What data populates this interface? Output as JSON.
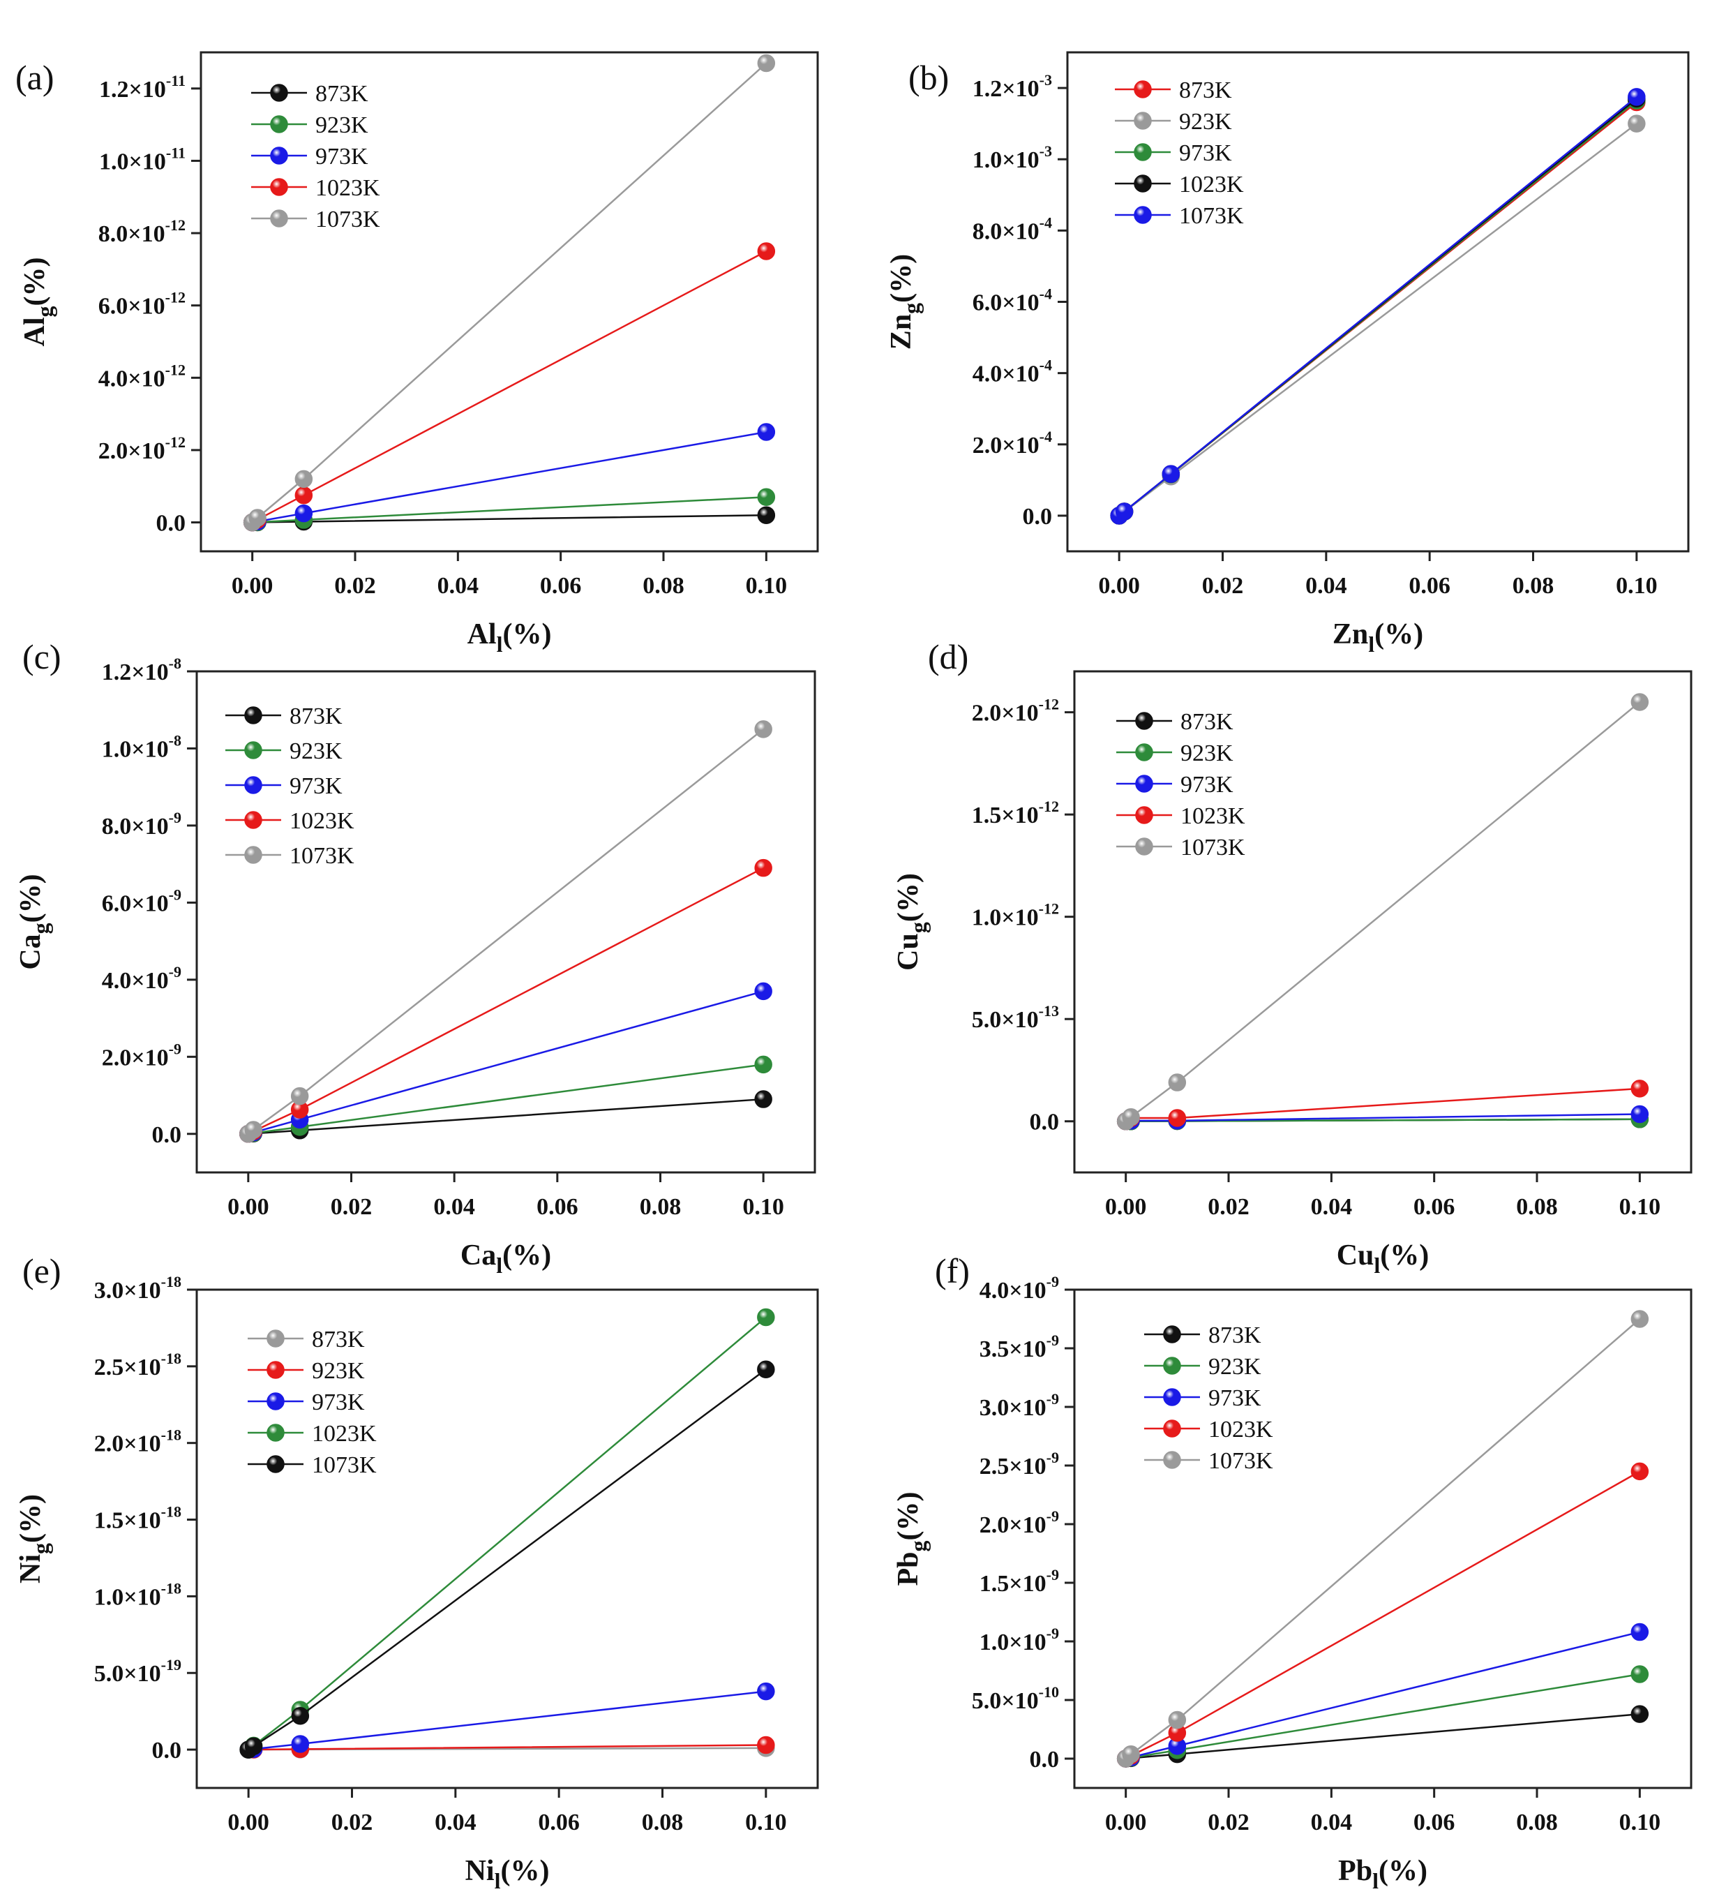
{
  "figure": {
    "panel_count": 6
  },
  "chart_data": [
    {
      "panel": "(a)",
      "type": "line",
      "xlabel_main": "Al",
      "xlabel_sub": "l",
      "xlabel_tail": "(%)",
      "ylabel_main": "Al",
      "ylabel_sub": "g",
      "ylabel_tail": "(%)",
      "xlim": [
        -0.01,
        0.11
      ],
      "ylim": [
        -8e-13,
        1.3e-11
      ],
      "grid": false,
      "xticks": [
        0,
        0.02,
        0.04,
        0.06,
        0.08,
        0.1
      ],
      "xtick_labels": [
        "0.00",
        "0.02",
        "0.04",
        "0.06",
        "0.08",
        "0.10"
      ],
      "yticks": [
        0,
        2e-12,
        4e-12,
        6e-12,
        8e-12,
        1e-11,
        1.2e-11
      ],
      "ytick_labels": [
        {
          "m": "0.0",
          "e": ""
        },
        {
          "m": "2.0×10",
          "e": "-12"
        },
        {
          "m": "4.0×10",
          "e": "-12"
        },
        {
          "m": "6.0×10",
          "e": "-12"
        },
        {
          "m": "8.0×10",
          "e": "-12"
        },
        {
          "m": "1.0×10",
          "e": "-11"
        },
        {
          "m": "1.2×10",
          "e": "-11"
        }
      ],
      "legend_position": "top-left",
      "x": [
        0,
        0.001,
        0.01,
        0.1
      ],
      "series": [
        {
          "name": "873K",
          "color": "#111111",
          "values": [
            0,
            2e-15,
            2e-14,
            2e-13
          ]
        },
        {
          "name": "923K",
          "color": "#2e8b3a",
          "values": [
            0,
            7e-15,
            7e-14,
            7e-13
          ]
        },
        {
          "name": "973K",
          "color": "#1a1ae6",
          "values": [
            0,
            2.5e-14,
            2.5e-13,
            2.5e-12
          ]
        },
        {
          "name": "1023K",
          "color": "#e61a1a",
          "values": [
            0,
            7.5e-14,
            7.5e-13,
            7.5e-12
          ]
        },
        {
          "name": "1073K",
          "color": "#9a9a9a",
          "values": [
            0,
            1.27e-13,
            1.2e-12,
            1.27e-11
          ]
        }
      ]
    },
    {
      "panel": "(b)",
      "type": "line",
      "xlabel_main": "Zn",
      "xlabel_sub": "l",
      "xlabel_tail": "(%)",
      "ylabel_main": "Zn",
      "ylabel_sub": "g",
      "ylabel_tail": "(%)",
      "xlim": [
        -0.01,
        0.11
      ],
      "ylim": [
        -0.0001,
        0.0013
      ],
      "grid": false,
      "xticks": [
        0,
        0.02,
        0.04,
        0.06,
        0.08,
        0.1
      ],
      "xtick_labels": [
        "0.00",
        "0.02",
        "0.04",
        "0.06",
        "0.08",
        "0.10"
      ],
      "yticks": [
        0,
        0.0002,
        0.0004,
        0.0006,
        0.0008,
        0.001,
        0.0012
      ],
      "ytick_labels": [
        {
          "m": "0.0",
          "e": ""
        },
        {
          "m": "2.0×10",
          "e": "-4"
        },
        {
          "m": "4.0×10",
          "e": "-4"
        },
        {
          "m": "6.0×10",
          "e": "-4"
        },
        {
          "m": "8.0×10",
          "e": "-4"
        },
        {
          "m": "1.0×10",
          "e": "-3"
        },
        {
          "m": "1.2×10",
          "e": "-3"
        }
      ],
      "legend_position": "top-left",
      "x": [
        0,
        0.001,
        0.01,
        0.1
      ],
      "series": [
        {
          "name": "873K",
          "color": "#e61a1a",
          "values": [
            0,
            1.16e-05,
            0.000116,
            0.00116
          ]
        },
        {
          "name": "923K",
          "color": "#9a9a9a",
          "values": [
            0,
            1.1e-05,
            0.00011,
            0.0011
          ]
        },
        {
          "name": "973K",
          "color": "#2e8b3a",
          "values": [
            0,
            1.16e-05,
            0.000116,
            0.001165
          ]
        },
        {
          "name": "1023K",
          "color": "#111111",
          "values": [
            0,
            1.17e-05,
            0.000117,
            0.00117
          ]
        },
        {
          "name": "1073K",
          "color": "#1a1ae6",
          "values": [
            0,
            1.17e-05,
            0.000117,
            0.001175
          ]
        }
      ]
    },
    {
      "panel": "(c)",
      "type": "line",
      "xlabel_main": "Ca",
      "xlabel_sub": "l",
      "xlabel_tail": "(%)",
      "ylabel_main": "Ca",
      "ylabel_sub": "g",
      "ylabel_tail": "(%)",
      "xlim": [
        -0.01,
        0.11
      ],
      "ylim": [
        -1e-09,
        1.2e-08
      ],
      "grid": false,
      "xticks": [
        0,
        0.02,
        0.04,
        0.06,
        0.08,
        0.1
      ],
      "xtick_labels": [
        "0.00",
        "0.02",
        "0.04",
        "0.06",
        "0.08",
        "0.10"
      ],
      "yticks": [
        0,
        2e-09,
        4e-09,
        6e-09,
        8e-09,
        1e-08,
        1.2e-08
      ],
      "ytick_labels": [
        {
          "m": "0.0",
          "e": ""
        },
        {
          "m": "2.0×10",
          "e": "-9"
        },
        {
          "m": "4.0×10",
          "e": "-9"
        },
        {
          "m": "6.0×10",
          "e": "-9"
        },
        {
          "m": "8.0×10",
          "e": "-9"
        },
        {
          "m": "1.0×10",
          "e": "-8"
        },
        {
          "m": "1.2×10",
          "e": "-8"
        }
      ],
      "legend_position": "top-left",
      "x": [
        0,
        0.001,
        0.01,
        0.1
      ],
      "series": [
        {
          "name": "873K",
          "color": "#111111",
          "values": [
            0,
            9e-12,
            9e-11,
            9e-10
          ]
        },
        {
          "name": "923K",
          "color": "#2e8b3a",
          "values": [
            0,
            1.8e-11,
            1.8e-10,
            1.8e-09
          ]
        },
        {
          "name": "973K",
          "color": "#1a1ae6",
          "values": [
            0,
            3.7e-11,
            3.7e-10,
            3.7e-09
          ]
        },
        {
          "name": "1023K",
          "color": "#e61a1a",
          "values": [
            0,
            6.9e-11,
            6.3e-10,
            6.9e-09
          ]
        },
        {
          "name": "1073K",
          "color": "#9a9a9a",
          "values": [
            0,
            1.05e-10,
            9.8e-10,
            1.05e-08
          ]
        }
      ]
    },
    {
      "panel": "(d)",
      "type": "line",
      "xlabel_main": "Cu",
      "xlabel_sub": "l",
      "xlabel_tail": "(%)",
      "ylabel_main": "Cu",
      "ylabel_sub": "g",
      "ylabel_tail": "(%)",
      "xlim": [
        -0.01,
        0.11
      ],
      "ylim": [
        -2.5e-13,
        2.2e-12
      ],
      "grid": false,
      "xticks": [
        0,
        0.02,
        0.04,
        0.06,
        0.08,
        0.1
      ],
      "xtick_labels": [
        "0.00",
        "0.02",
        "0.04",
        "0.06",
        "0.08",
        "0.10"
      ],
      "yticks": [
        0,
        5e-13,
        1e-12,
        1.5e-12,
        2e-12
      ],
      "ytick_labels": [
        {
          "m": "0.0",
          "e": ""
        },
        {
          "m": "5.0×10",
          "e": "-13"
        },
        {
          "m": "1.0×10",
          "e": "-12"
        },
        {
          "m": "1.5×10",
          "e": "-12"
        },
        {
          "m": "2.0×10",
          "e": "-12"
        }
      ],
      "legend_position": "top-left",
      "x": [
        0,
        0.001,
        0.01,
        0.1
      ],
      "series": [
        {
          "name": "873K",
          "color": "#111111",
          "values": [
            0,
            1e-16,
            1e-15,
            1e-14
          ]
        },
        {
          "name": "923K",
          "color": "#2e8b3a",
          "values": [
            0,
            1e-16,
            1e-15,
            1e-14
          ]
        },
        {
          "name": "973K",
          "color": "#1a1ae6",
          "values": [
            0,
            3e-15,
            3e-15,
            3.5e-14
          ]
        },
        {
          "name": "1023K",
          "color": "#e61a1a",
          "values": [
            0,
            1.6e-14,
            1.6e-14,
            1.6e-13
          ]
        },
        {
          "name": "1073K",
          "color": "#9a9a9a",
          "values": [
            0,
            2.05e-14,
            1.9e-13,
            2.05e-12
          ]
        }
      ]
    },
    {
      "panel": "(e)",
      "type": "line",
      "xlabel_main": "Ni",
      "xlabel_sub": "l",
      "xlabel_tail": "(%)",
      "ylabel_main": "Ni",
      "ylabel_sub": "g",
      "ylabel_tail": "(%)",
      "xlim": [
        -0.01,
        0.11
      ],
      "ylim": [
        -2.5e-19,
        3e-18
      ],
      "grid": false,
      "xticks": [
        0,
        0.02,
        0.04,
        0.06,
        0.08,
        0.1
      ],
      "xtick_labels": [
        "0.00",
        "0.02",
        "0.04",
        "0.06",
        "0.08",
        "0.10"
      ],
      "yticks": [
        0,
        5e-19,
        1e-18,
        1.5e-18,
        2e-18,
        2.5e-18,
        3e-18
      ],
      "ytick_labels": [
        {
          "m": "0.0",
          "e": ""
        },
        {
          "m": "5.0×10",
          "e": "-19"
        },
        {
          "m": "1.0×10",
          "e": "-18"
        },
        {
          "m": "1.5×10",
          "e": "-18"
        },
        {
          "m": "2.0×10",
          "e": "-18"
        },
        {
          "m": "2.5×10",
          "e": "-18"
        },
        {
          "m": "3.0×10",
          "e": "-18"
        }
      ],
      "legend_position": "top-left",
      "x": [
        0,
        0.001,
        0.01,
        0.1
      ],
      "series": [
        {
          "name": "873K",
          "color": "#9a9a9a",
          "values": [
            0,
            1e-22,
            1e-21,
            1e-20
          ]
        },
        {
          "name": "923K",
          "color": "#e61a1a",
          "values": [
            0,
            3e-22,
            3e-21,
            3e-20
          ]
        },
        {
          "name": "973K",
          "color": "#1a1ae6",
          "values": [
            0,
            3.7e-21,
            3.7e-20,
            3.8e-19
          ]
        },
        {
          "name": "1023K",
          "color": "#2e8b3a",
          "values": [
            0,
            2.6e-20,
            2.6e-19,
            2.82e-18
          ]
        },
        {
          "name": "1073K",
          "color": "#111111",
          "values": [
            0,
            2.2e-20,
            2.2e-19,
            2.48e-18
          ]
        }
      ]
    },
    {
      "panel": "(f)",
      "type": "line",
      "xlabel_main": "Pb",
      "xlabel_sub": "l",
      "xlabel_tail": "(%)",
      "ylabel_main": "Pb",
      "ylabel_sub": "g",
      "ylabel_tail": "(%)",
      "xlim": [
        -0.01,
        0.11
      ],
      "ylim": [
        -2.5e-10,
        4e-09
      ],
      "grid": false,
      "xticks": [
        0,
        0.02,
        0.04,
        0.06,
        0.08,
        0.1
      ],
      "xtick_labels": [
        "0.00",
        "0.02",
        "0.04",
        "0.06",
        "0.08",
        "0.10"
      ],
      "yticks": [
        0,
        5e-10,
        1e-09,
        1.5e-09,
        2e-09,
        2.5e-09,
        3e-09,
        3.5e-09,
        4e-09
      ],
      "ytick_labels": [
        {
          "m": "0.0",
          "e": ""
        },
        {
          "m": "5.0×10",
          "e": "-10"
        },
        {
          "m": "1.0×10",
          "e": "-9"
        },
        {
          "m": "1.5×10",
          "e": "-9"
        },
        {
          "m": "2.0×10",
          "e": "-9"
        },
        {
          "m": "2.5×10",
          "e": "-9"
        },
        {
          "m": "3.0×10",
          "e": "-9"
        },
        {
          "m": "3.5×10",
          "e": "-9"
        },
        {
          "m": "4.0×10",
          "e": "-9"
        }
      ],
      "legend_position": "top-left",
      "x": [
        0,
        0.001,
        0.01,
        0.1
      ],
      "series": [
        {
          "name": "873K",
          "color": "#111111",
          "values": [
            0,
            3.8e-12,
            3.8e-11,
            3.8e-10
          ]
        },
        {
          "name": "923K",
          "color": "#2e8b3a",
          "values": [
            0,
            7.2e-12,
            7.2e-11,
            7.2e-10
          ]
        },
        {
          "name": "973K",
          "color": "#1a1ae6",
          "values": [
            0,
            1.08e-11,
            1.08e-10,
            1.08e-09
          ]
        },
        {
          "name": "1023K",
          "color": "#e61a1a",
          "values": [
            0,
            2.45e-11,
            2.2e-10,
            2.45e-09
          ]
        },
        {
          "name": "1073K",
          "color": "#9a9a9a",
          "values": [
            0,
            3.75e-11,
            3.3e-10,
            3.75e-09
          ]
        }
      ]
    }
  ]
}
